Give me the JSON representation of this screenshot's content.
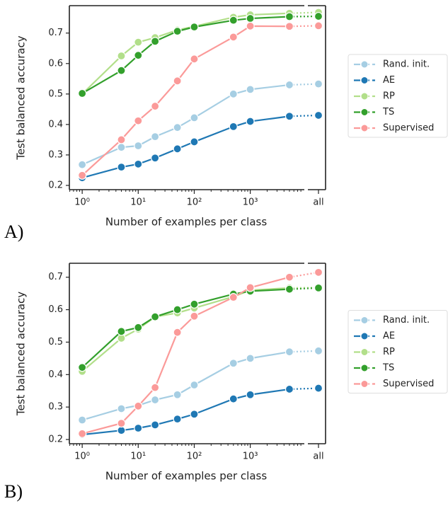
{
  "chart_data": [
    {
      "type": "line",
      "panel_label": "A)",
      "xlabel": "Number of examples per class",
      "ylabel": "Test balanced accuracy",
      "xscale": "log",
      "legend": "outside right",
      "grid": false,
      "x": [
        1,
        5,
        10,
        20,
        50,
        100,
        500,
        1000,
        5000,
        "all"
      ],
      "xlim": [
        0.59,
        8700
      ],
      "ylim": [
        0.186,
        0.79
      ],
      "xticks": [
        {
          "value": 1,
          "label": "10⁰"
        },
        {
          "value": 10,
          "label": "10¹"
        },
        {
          "value": 100,
          "label": "10²"
        },
        {
          "value": 1000,
          "label": "10³"
        },
        "all"
      ],
      "yticks": [
        0.2,
        0.3,
        0.4,
        0.5,
        0.6,
        0.7
      ],
      "series": [
        {
          "name": "Rand. init.",
          "color": "#a6cee3",
          "values": [
            0.268,
            0.325,
            0.33,
            0.36,
            0.39,
            0.422,
            0.5,
            0.515,
            0.53,
            0.533
          ]
        },
        {
          "name": "AE",
          "color": "#1f78b4",
          "values": [
            0.225,
            0.26,
            0.27,
            0.29,
            0.32,
            0.343,
            0.393,
            0.41,
            0.427,
            0.43
          ]
        },
        {
          "name": "RP",
          "color": "#b2df8a",
          "values": [
            0.5,
            0.625,
            0.67,
            0.685,
            0.71,
            0.722,
            0.752,
            0.76,
            0.765,
            0.768
          ]
        },
        {
          "name": "TS",
          "color": "#33a02c",
          "values": [
            0.502,
            0.577,
            0.627,
            0.673,
            0.706,
            0.72,
            0.742,
            0.748,
            0.754,
            0.755
          ]
        },
        {
          "name": "Supervised",
          "color": "#fb9a99",
          "values": [
            0.233,
            0.35,
            0.412,
            0.46,
            0.543,
            0.615,
            0.687,
            0.723,
            0.722,
            0.724
          ]
        }
      ]
    },
    {
      "type": "line",
      "panel_label": "B)",
      "xlabel": "Number of examples per class",
      "ylabel": "Test balanced accuracy",
      "xscale": "log",
      "legend": "outside right",
      "grid": false,
      "x": [
        1,
        5,
        10,
        20,
        50,
        100,
        500,
        1000,
        5000,
        "all"
      ],
      "xlim": [
        0.59,
        8700
      ],
      "ylim": [
        0.187,
        0.743
      ],
      "xticks": [
        {
          "value": 1,
          "label": "10⁰"
        },
        {
          "value": 10,
          "label": "10¹"
        },
        {
          "value": 100,
          "label": "10²"
        },
        {
          "value": 1000,
          "label": "10³"
        },
        "all"
      ],
      "yticks": [
        0.2,
        0.3,
        0.4,
        0.5,
        0.6,
        0.7
      ],
      "series": [
        {
          "name": "Rand. init.",
          "color": "#a6cee3",
          "values": [
            0.26,
            0.295,
            0.305,
            0.322,
            0.338,
            0.368,
            0.435,
            0.45,
            0.47,
            0.473
          ]
        },
        {
          "name": "AE",
          "color": "#1f78b4",
          "values": [
            0.215,
            0.228,
            0.235,
            0.245,
            0.263,
            0.278,
            0.325,
            0.338,
            0.355,
            0.358
          ]
        },
        {
          "name": "RP",
          "color": "#b2df8a",
          "values": [
            0.41,
            0.512,
            0.54,
            0.578,
            0.59,
            0.605,
            0.64,
            0.66,
            0.667,
            0.668
          ]
        },
        {
          "name": "TS",
          "color": "#33a02c",
          "values": [
            0.422,
            0.533,
            0.545,
            0.578,
            0.6,
            0.617,
            0.648,
            0.657,
            0.663,
            0.667
          ]
        },
        {
          "name": "Supervised",
          "color": "#fb9a99",
          "values": [
            0.218,
            0.25,
            0.303,
            0.36,
            0.53,
            0.58,
            0.638,
            0.668,
            0.7,
            0.715
          ]
        }
      ]
    }
  ]
}
